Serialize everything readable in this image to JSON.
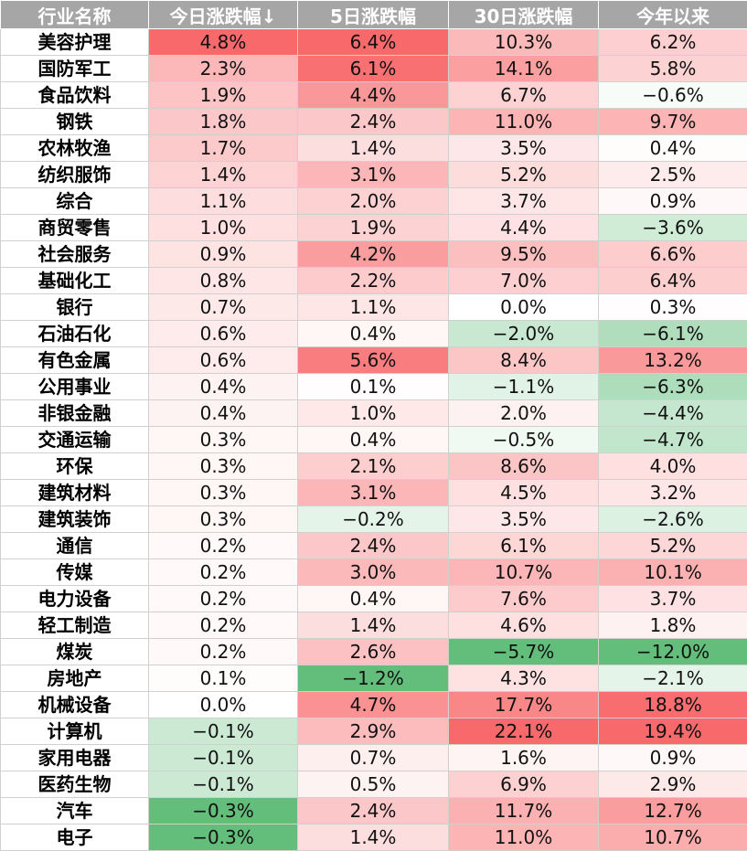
{
  "chart_data": {
    "type": "table",
    "columns": [
      "行业名称",
      "今日涨跌幅↓",
      "5日涨跌幅",
      "30日涨跌幅",
      "今年以来"
    ],
    "rows": [
      {
        "name": "美容护理",
        "values": [
          4.8,
          6.4,
          10.3,
          6.2
        ]
      },
      {
        "name": "国防军工",
        "values": [
          2.3,
          6.1,
          14.1,
          5.8
        ]
      },
      {
        "name": "食品饮料",
        "values": [
          1.9,
          4.4,
          6.7,
          -0.6
        ]
      },
      {
        "name": "钢铁",
        "values": [
          1.8,
          2.4,
          11.0,
          9.7
        ]
      },
      {
        "name": "农林牧渔",
        "values": [
          1.7,
          1.4,
          3.5,
          0.4
        ]
      },
      {
        "name": "纺织服饰",
        "values": [
          1.4,
          3.1,
          5.2,
          2.5
        ]
      },
      {
        "name": "综合",
        "values": [
          1.1,
          2.0,
          3.7,
          0.9
        ]
      },
      {
        "name": "商贸零售",
        "values": [
          1.0,
          1.9,
          4.4,
          -3.6
        ]
      },
      {
        "name": "社会服务",
        "values": [
          0.9,
          4.2,
          9.5,
          6.6
        ]
      },
      {
        "name": "基础化工",
        "values": [
          0.8,
          2.2,
          7.0,
          6.4
        ]
      },
      {
        "name": "银行",
        "values": [
          0.7,
          1.1,
          0.0,
          0.3
        ]
      },
      {
        "name": "石油石化",
        "values": [
          0.6,
          0.4,
          -2.0,
          -6.1
        ]
      },
      {
        "name": "有色金属",
        "values": [
          0.6,
          5.6,
          8.4,
          13.2
        ]
      },
      {
        "name": "公用事业",
        "values": [
          0.4,
          0.1,
          -1.1,
          -6.3
        ]
      },
      {
        "name": "非银金融",
        "values": [
          0.4,
          1.0,
          2.0,
          -4.4
        ]
      },
      {
        "name": "交通运输",
        "values": [
          0.3,
          0.4,
          -0.5,
          -4.7
        ]
      },
      {
        "name": "环保",
        "values": [
          0.3,
          2.1,
          8.6,
          4.0
        ]
      },
      {
        "name": "建筑材料",
        "values": [
          0.3,
          3.1,
          4.5,
          3.2
        ]
      },
      {
        "name": "建筑装饰",
        "values": [
          0.3,
          -0.2,
          3.5,
          -2.6
        ]
      },
      {
        "name": "通信",
        "values": [
          0.2,
          2.4,
          6.1,
          5.2
        ]
      },
      {
        "name": "传媒",
        "values": [
          0.2,
          3.0,
          10.7,
          10.1
        ]
      },
      {
        "name": "电力设备",
        "values": [
          0.2,
          0.4,
          7.6,
          3.7
        ]
      },
      {
        "name": "轻工制造",
        "values": [
          0.2,
          1.4,
          4.6,
          1.8
        ]
      },
      {
        "name": "煤炭",
        "values": [
          0.2,
          2.6,
          -5.7,
          -12.0
        ]
      },
      {
        "name": "房地产",
        "values": [
          0.1,
          -1.2,
          4.3,
          -2.1
        ]
      },
      {
        "name": "机械设备",
        "values": [
          0.0,
          4.7,
          17.7,
          18.8
        ]
      },
      {
        "name": "计算机",
        "values": [
          -0.1,
          2.9,
          22.1,
          19.4
        ]
      },
      {
        "name": "家用电器",
        "values": [
          -0.1,
          0.7,
          1.6,
          0.9
        ]
      },
      {
        "name": "医药生物",
        "values": [
          -0.1,
          0.5,
          6.9,
          2.9
        ]
      },
      {
        "name": "汽车",
        "values": [
          -0.3,
          2.4,
          11.7,
          12.7
        ]
      },
      {
        "name": "电子",
        "values": [
          -0.3,
          1.4,
          11.0,
          10.7
        ]
      }
    ],
    "value_format": "percent_1dp",
    "colors": {
      "header_bg": "#a6a6a6",
      "header_text": "#ffffff",
      "positive_max": "#f8696b",
      "negative_max": "#63be7b",
      "neutral": "#ffffff",
      "grid": "#d0d0d0"
    }
  }
}
